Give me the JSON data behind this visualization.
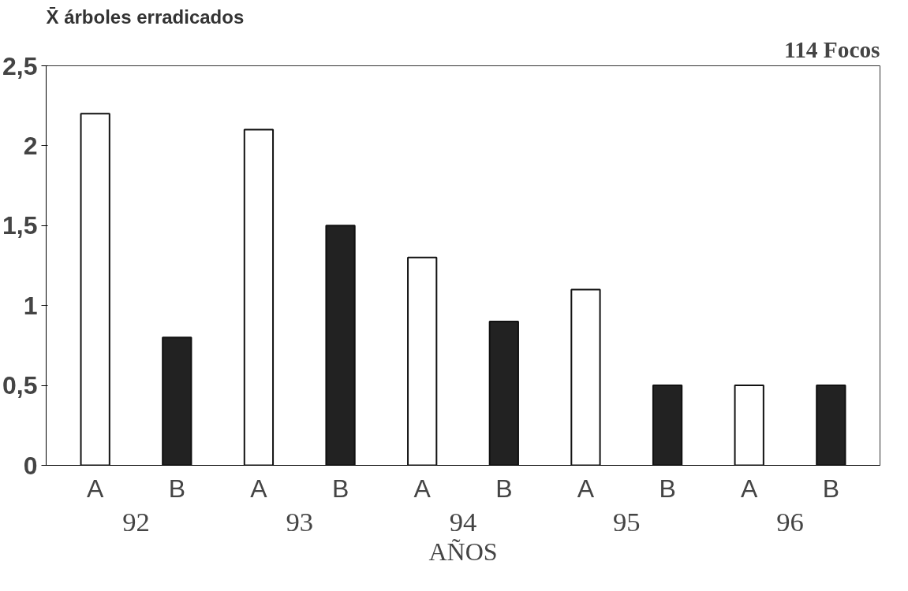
{
  "chart_data": {
    "type": "bar",
    "title": "114 Focos",
    "ylabel": "X̄ árboles erradicados",
    "xlabel": "AÑOS",
    "categories": [
      "A",
      "B",
      "A",
      "B",
      "A",
      "B",
      "A",
      "B",
      "A",
      "B"
    ],
    "values": [
      2.2,
      0.8,
      2.1,
      1.5,
      1.3,
      0.9,
      1.1,
      0.5,
      0.5,
      0.5
    ],
    "colors": [
      "#ffffff",
      "#222222",
      "#ffffff",
      "#222222",
      "#ffffff",
      "#222222",
      "#ffffff",
      "#222222",
      "#ffffff",
      "#222222"
    ],
    "annotations": [
      "92",
      "93",
      "94",
      "95",
      "96"
    ],
    "ylim": [
      0,
      2.5
    ],
    "yticks": [
      0,
      {
        "value": 0.5,
        "label": "0,5"
      },
      1,
      {
        "value": 1.5,
        "label": "1,5"
      },
      2,
      {
        "value": 2.5,
        "label": "2,5"
      }
    ],
    "grid": false
  }
}
